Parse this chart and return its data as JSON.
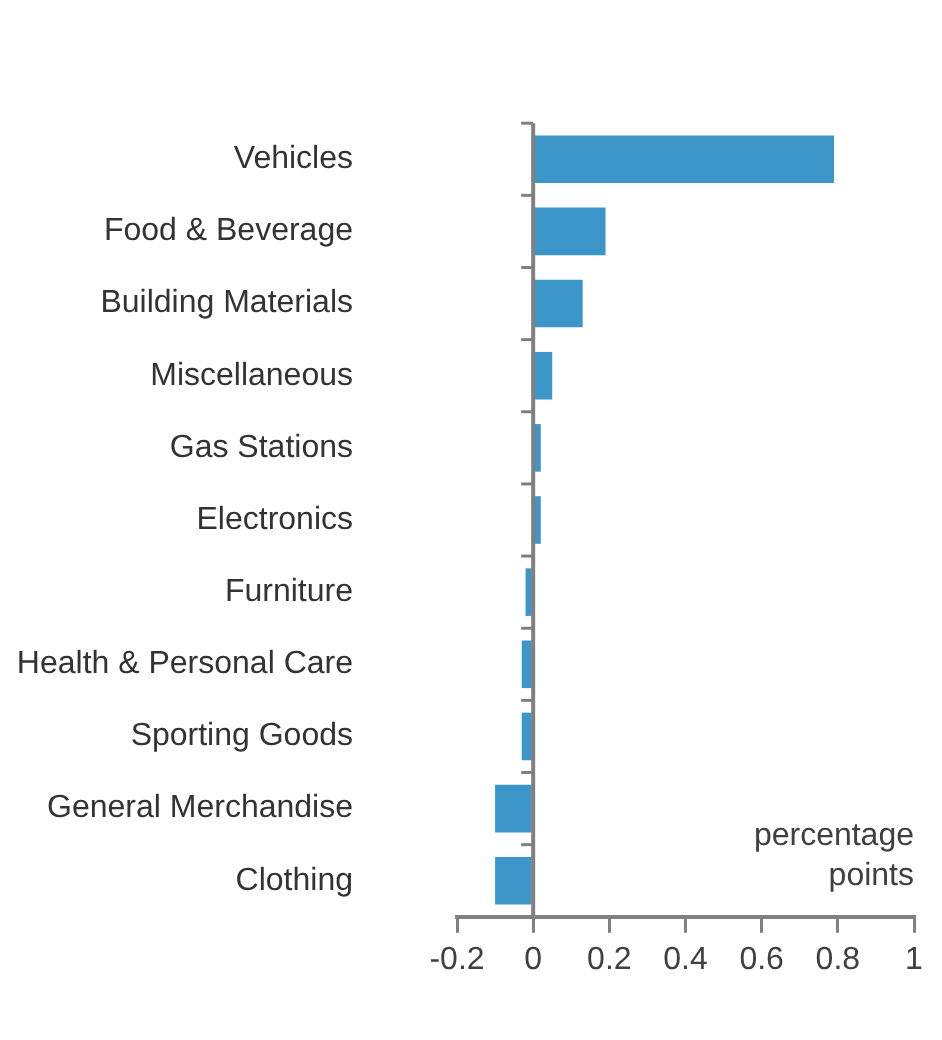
{
  "chart_data": {
    "type": "bar",
    "orientation": "horizontal",
    "categories": [
      "Vehicles",
      "Food & Beverage",
      "Building Materials",
      "Miscellaneous",
      "Gas Stations",
      "Electronics",
      "Furniture",
      "Health & Personal Care",
      "Sporting Goods",
      "General Merchandise",
      "Clothing"
    ],
    "values": [
      0.79,
      0.19,
      0.13,
      0.05,
      0.02,
      0.02,
      -0.02,
      -0.03,
      -0.03,
      -0.1,
      -0.1
    ],
    "color": "#3d96c9",
    "xlim": [
      -0.2,
      1
    ],
    "xticks": [
      -0.2,
      0,
      0.2,
      0.4,
      0.6,
      0.8,
      1
    ],
    "legend": false,
    "annotations": [
      "percentage\npoints"
    ]
  }
}
